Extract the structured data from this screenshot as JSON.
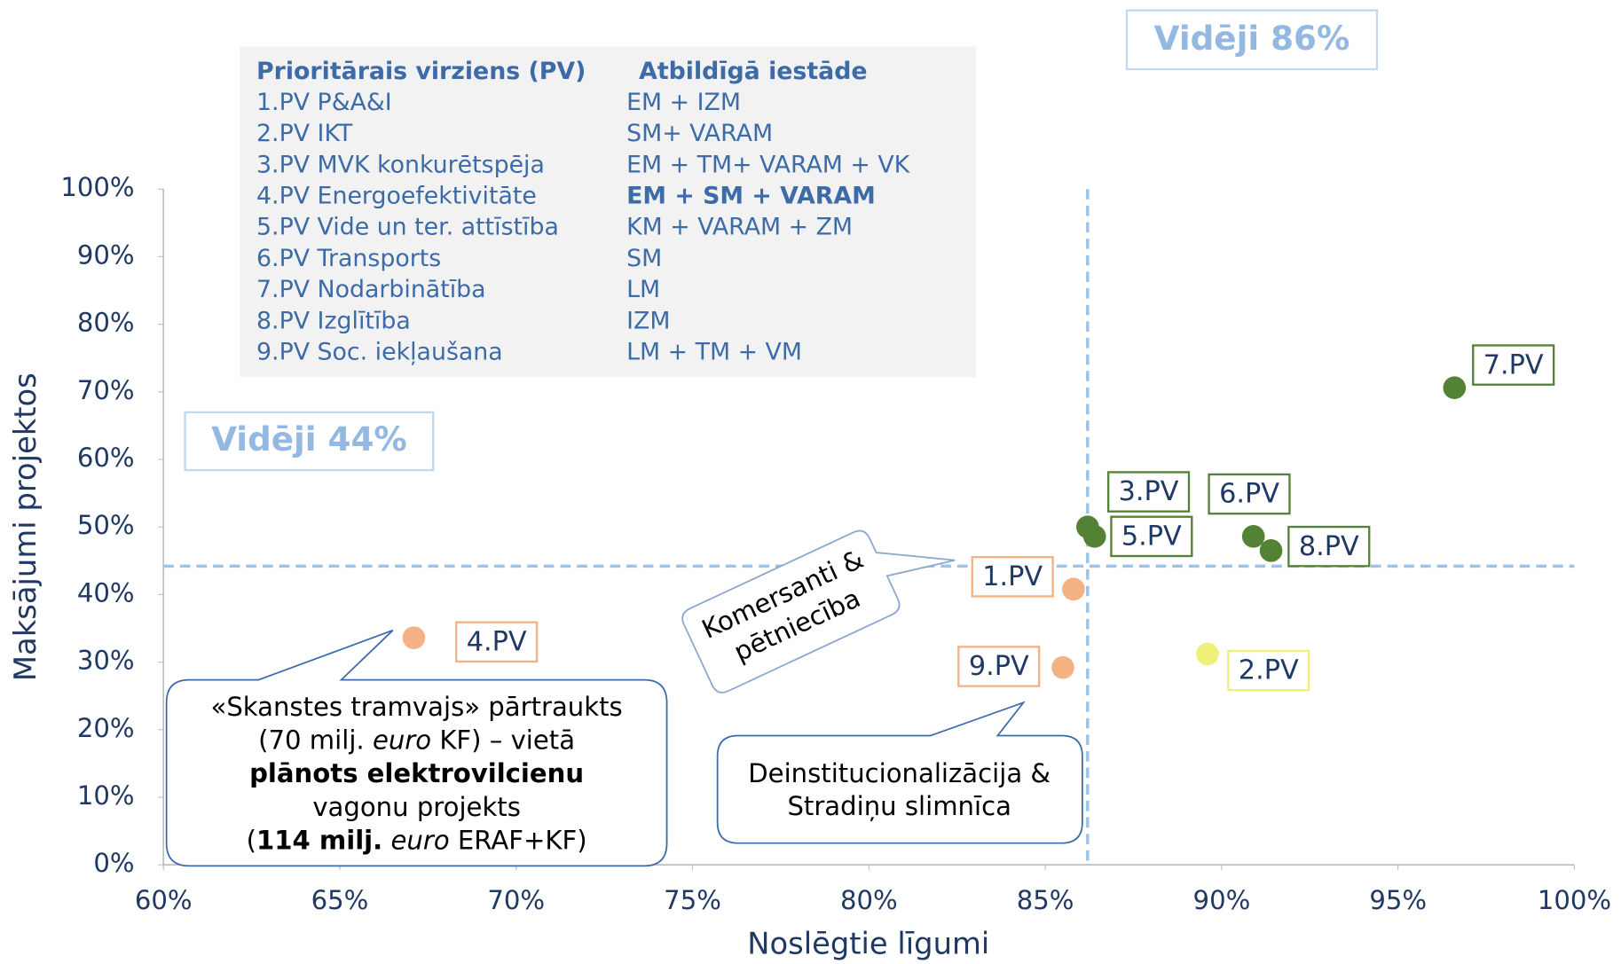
{
  "chart_data": {
    "type": "scatter",
    "xlabel": "Noslēgtie līgumi",
    "ylabel": "Maksājumi projektos",
    "xlim": [
      60,
      100
    ],
    "ylim": [
      0,
      100
    ],
    "xticks": [
      {
        "value": 60,
        "label": "60%"
      },
      {
        "value": 65,
        "label": "65%"
      },
      {
        "value": 70,
        "label": "70%"
      },
      {
        "value": 75,
        "label": "75%"
      },
      {
        "value": 80,
        "label": "80%"
      },
      {
        "value": 85,
        "label": "85%"
      },
      {
        "value": 90,
        "label": "90%"
      },
      {
        "value": 95,
        "label": "95%"
      },
      {
        "value": 100,
        "label": "100%"
      }
    ],
    "yticks": [
      {
        "value": 0,
        "label": "0%"
      },
      {
        "value": 10,
        "label": "10%"
      },
      {
        "value": 20,
        "label": "20%"
      },
      {
        "value": 30,
        "label": "30%"
      },
      {
        "value": 40,
        "label": "40%"
      },
      {
        "value": 50,
        "label": "50%"
      },
      {
        "value": 60,
        "label": "60%"
      },
      {
        "value": 70,
        "label": "70%"
      },
      {
        "value": 80,
        "label": "80%"
      },
      {
        "value": 90,
        "label": "90%"
      },
      {
        "value": 100,
        "label": "100%"
      }
    ],
    "series": [
      {
        "name": "1.PV",
        "color": "#f4b183",
        "x": [
          85.8
        ],
        "values": [
          40.8
        ]
      },
      {
        "name": "2.PV",
        "color": "#eef07a",
        "x": [
          89.6
        ],
        "values": [
          31.2
        ]
      },
      {
        "name": "3.PV",
        "color": "#548235",
        "x": [
          86.2
        ],
        "values": [
          50.0
        ]
      },
      {
        "name": "4.PV",
        "color": "#f4b183",
        "x": [
          67.1
        ],
        "values": [
          33.6
        ]
      },
      {
        "name": "5.PV",
        "color": "#548235",
        "x": [
          86.4
        ],
        "values": [
          48.6
        ]
      },
      {
        "name": "6.PV",
        "color": "#548235",
        "x": [
          90.9
        ],
        "values": [
          48.6
        ]
      },
      {
        "name": "7.PV",
        "color": "#548235",
        "x": [
          96.6
        ],
        "values": [
          70.6
        ]
      },
      {
        "name": "8.PV",
        "color": "#548235",
        "x": [
          91.4
        ],
        "values": [
          46.5
        ]
      },
      {
        "name": "9.PV",
        "color": "#f4b183",
        "x": [
          85.5
        ],
        "values": [
          29.2
        ]
      }
    ],
    "averages": {
      "x": {
        "value": 86.2,
        "label": "Vidēji 86%"
      },
      "y": {
        "value": 44.2,
        "label": "Vidēji 44%"
      }
    }
  },
  "legend_table": {
    "headers": [
      "Prioritārais virziens (PV)",
      "Atbildīgā iestāde"
    ],
    "rows": [
      [
        "1.PV P&A&I",
        "EM + IZM"
      ],
      [
        "2.PV IKT",
        "SM+ VARAM"
      ],
      [
        "3.PV MVK konkurētspēja",
        "EM + TM+ VARAM + VK"
      ],
      [
        "4.PV Energoefektivitāte",
        "EM + SM + VARAM"
      ],
      [
        "5.PV Vide un ter. attīstība",
        "KM + VARAM + ZM"
      ],
      [
        "6.PV Transports",
        "SM"
      ],
      [
        "7.PV Nodarbinātība",
        "LM"
      ],
      [
        "8.PV Izglītība",
        "IZM"
      ],
      [
        "9.PV Soc. iekļaušana",
        "LM + TM + VM"
      ]
    ]
  },
  "annotations": [
    {
      "lines": [
        [
          "«Skanstes tramvajs» pārtraukts"
        ],
        [
          "(70 milj. ",
          "euro",
          " KF) – vietā"
        ],
        [
          "plānots elektrovilcienu"
        ],
        [
          "vagonu projekts"
        ],
        [
          "(",
          "114 milj.",
          " ",
          "euro",
          " ERAF+KF)"
        ]
      ]
    },
    {
      "lines": [
        [
          "Deinstitucionalizācija &"
        ],
        [
          "Stradiņu slimnīca"
        ]
      ]
    },
    {
      "lines": [
        [
          "Komersanti &"
        ],
        [
          "pētniecība"
        ]
      ]
    }
  ]
}
